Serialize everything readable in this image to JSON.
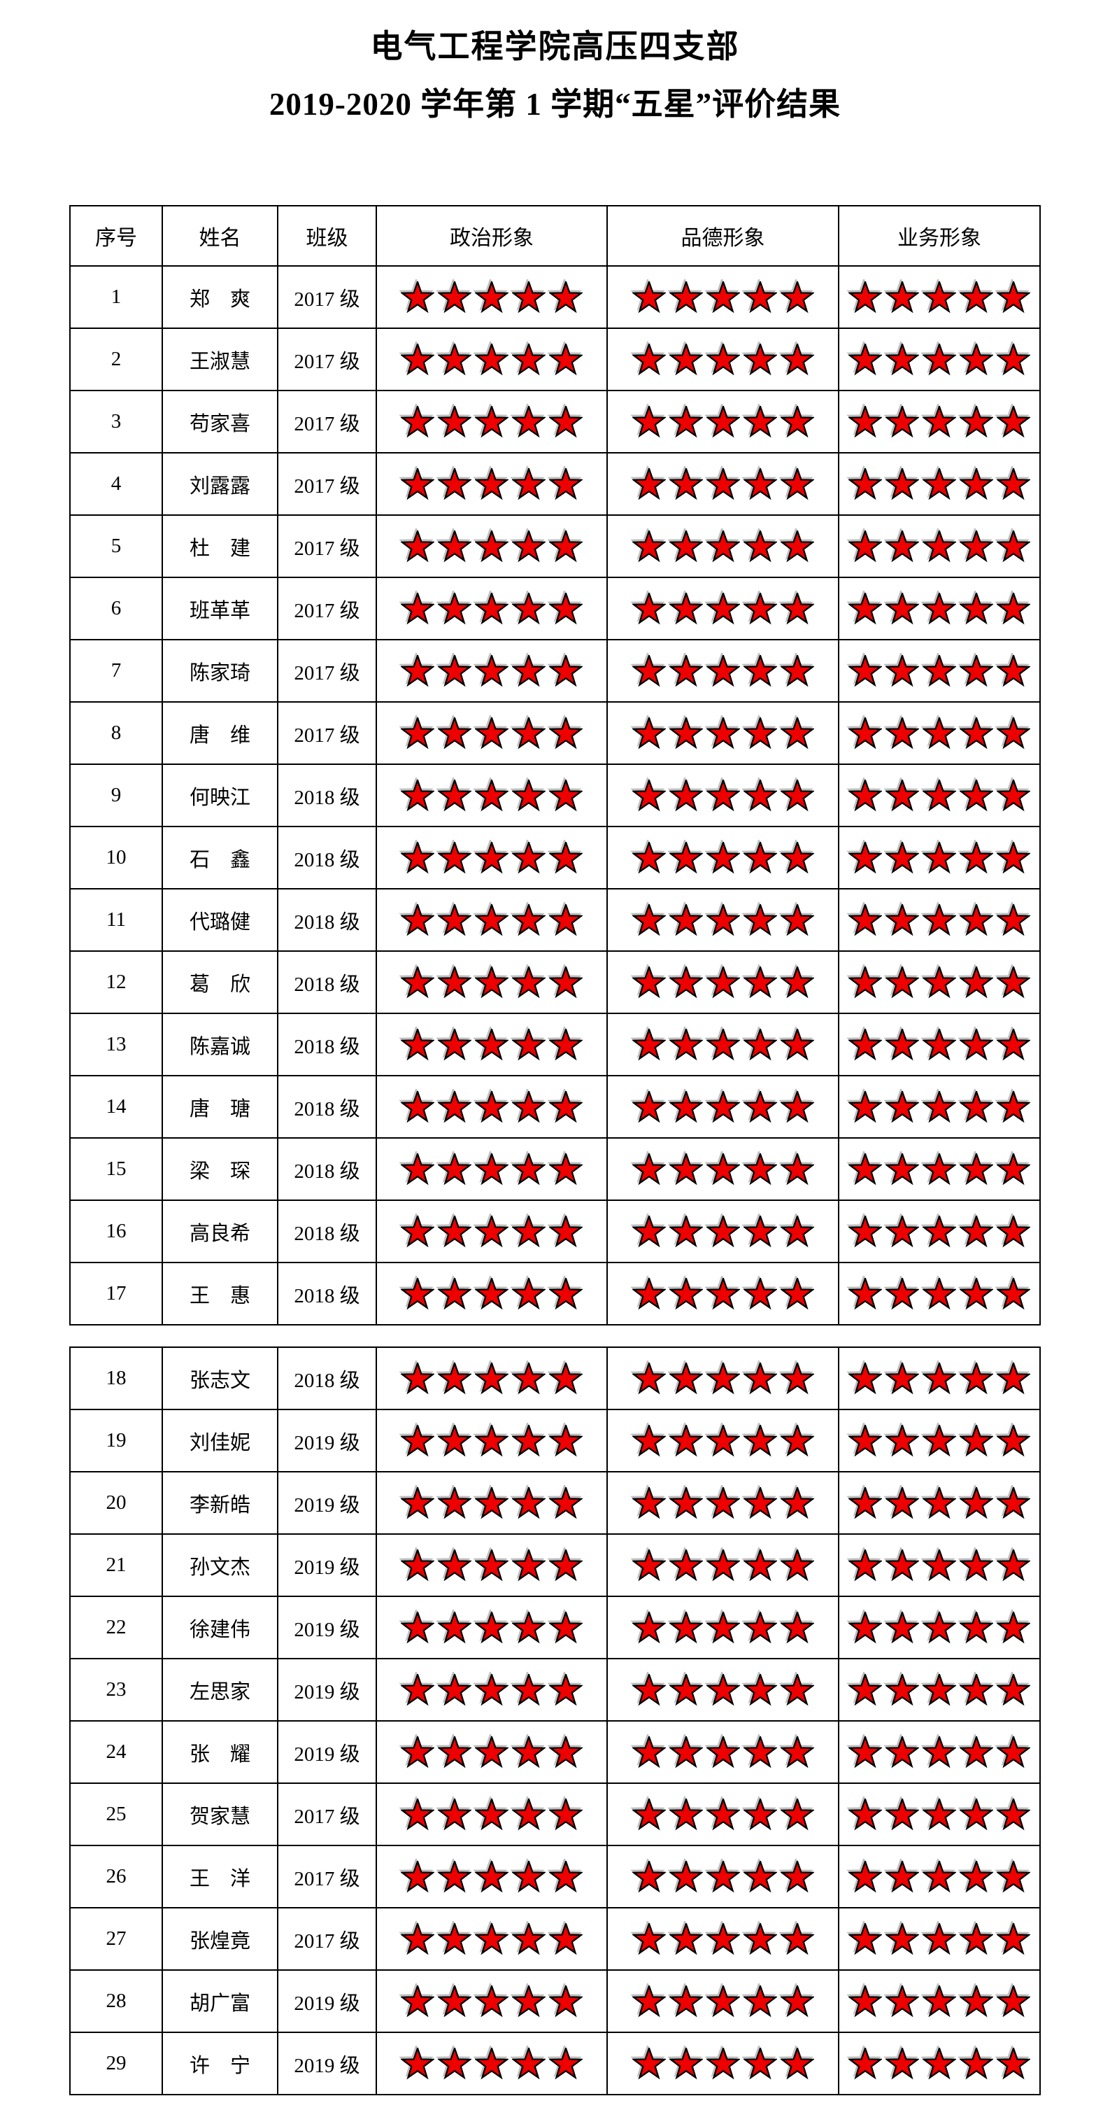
{
  "document": {
    "title_line1": "电气工程学院高压四支部",
    "title_line2": "2019-2020 学年第 1 学期“五星”评价结果"
  },
  "table": {
    "headers": [
      "序号",
      "姓名",
      "班级",
      "政治形象",
      "品德形象",
      "业务形象"
    ],
    "star_icon": "red-five-pointed-star",
    "star_fill_color": "#ee0000",
    "star_outline_color": "#000000",
    "max_stars": 5,
    "page_break_after_row": 17,
    "rows": [
      {
        "no": "1",
        "name": "郑爽",
        "class": "2017 级",
        "stars": {
          "political": 5,
          "moral": 5,
          "professional": 5
        }
      },
      {
        "no": "2",
        "name": "王淑慧",
        "class": "2017 级",
        "stars": {
          "political": 5,
          "moral": 5,
          "professional": 5
        }
      },
      {
        "no": "3",
        "name": "苟家喜",
        "class": "2017 级",
        "stars": {
          "political": 5,
          "moral": 5,
          "professional": 5
        }
      },
      {
        "no": "4",
        "name": "刘露露",
        "class": "2017 级",
        "stars": {
          "political": 5,
          "moral": 5,
          "professional": 5
        }
      },
      {
        "no": "5",
        "name": "杜建",
        "class": "2017 级",
        "stars": {
          "political": 5,
          "moral": 5,
          "professional": 5
        }
      },
      {
        "no": "6",
        "name": "班革革",
        "class": "2017 级",
        "stars": {
          "political": 5,
          "moral": 5,
          "professional": 5
        }
      },
      {
        "no": "7",
        "name": "陈家琦",
        "class": "2017 级",
        "stars": {
          "political": 5,
          "moral": 5,
          "professional": 5
        }
      },
      {
        "no": "8",
        "name": "唐维",
        "class": "2017 级",
        "stars": {
          "political": 5,
          "moral": 5,
          "professional": 5
        }
      },
      {
        "no": "9",
        "name": "何映江",
        "class": "2018 级",
        "stars": {
          "political": 5,
          "moral": 5,
          "professional": 5
        }
      },
      {
        "no": "10",
        "name": "石鑫",
        "class": "2018 级",
        "stars": {
          "political": 5,
          "moral": 5,
          "professional": 5
        }
      },
      {
        "no": "11",
        "name": "代璐健",
        "class": "2018 级",
        "stars": {
          "political": 5,
          "moral": 5,
          "professional": 5
        }
      },
      {
        "no": "12",
        "name": "葛欣",
        "class": "2018 级",
        "stars": {
          "political": 5,
          "moral": 5,
          "professional": 5
        }
      },
      {
        "no": "13",
        "name": "陈嘉诚",
        "class": "2018 级",
        "stars": {
          "political": 5,
          "moral": 5,
          "professional": 5
        }
      },
      {
        "no": "14",
        "name": "唐瑭",
        "class": "2018 级",
        "stars": {
          "political": 5,
          "moral": 5,
          "professional": 5
        }
      },
      {
        "no": "15",
        "name": "梁琛",
        "class": "2018 级",
        "stars": {
          "political": 5,
          "moral": 5,
          "professional": 5
        }
      },
      {
        "no": "16",
        "name": "高良希",
        "class": "2018 级",
        "stars": {
          "political": 5,
          "moral": 5,
          "professional": 5
        }
      },
      {
        "no": "17",
        "name": "王惠",
        "class": "2018 级",
        "stars": {
          "political": 5,
          "moral": 5,
          "professional": 5
        }
      },
      {
        "no": "18",
        "name": "张志文",
        "class": "2018 级",
        "stars": {
          "political": 5,
          "moral": 5,
          "professional": 5
        }
      },
      {
        "no": "19",
        "name": "刘佳妮",
        "class": "2019 级",
        "stars": {
          "political": 5,
          "moral": 5,
          "professional": 5
        }
      },
      {
        "no": "20",
        "name": "李新皓",
        "class": "2019 级",
        "stars": {
          "political": 5,
          "moral": 5,
          "professional": 5
        }
      },
      {
        "no": "21",
        "name": "孙文杰",
        "class": "2019 级",
        "stars": {
          "political": 5,
          "moral": 5,
          "professional": 5
        }
      },
      {
        "no": "22",
        "name": "徐建伟",
        "class": "2019 级",
        "stars": {
          "political": 5,
          "moral": 5,
          "professional": 5
        }
      },
      {
        "no": "23",
        "name": "左思家",
        "class": "2019 级",
        "stars": {
          "political": 5,
          "moral": 5,
          "professional": 5
        }
      },
      {
        "no": "24",
        "name": "张耀",
        "class": "2019 级",
        "stars": {
          "political": 5,
          "moral": 5,
          "professional": 5
        }
      },
      {
        "no": "25",
        "name": "贺家慧",
        "class": "2017 级",
        "stars": {
          "political": 5,
          "moral": 5,
          "professional": 5
        }
      },
      {
        "no": "26",
        "name": "王洋",
        "class": "2017 级",
        "stars": {
          "political": 5,
          "moral": 5,
          "professional": 5
        }
      },
      {
        "no": "27",
        "name": "张煌竟",
        "class": "2017 级",
        "stars": {
          "political": 5,
          "moral": 5,
          "professional": 5
        }
      },
      {
        "no": "28",
        "name": "胡广富",
        "class": "2019 级",
        "stars": {
          "political": 5,
          "moral": 5,
          "professional": 5
        }
      },
      {
        "no": "29",
        "name": "许宁",
        "class": "2019 级",
        "stars": {
          "political": 5,
          "moral": 5,
          "professional": 5
        }
      }
    ]
  }
}
